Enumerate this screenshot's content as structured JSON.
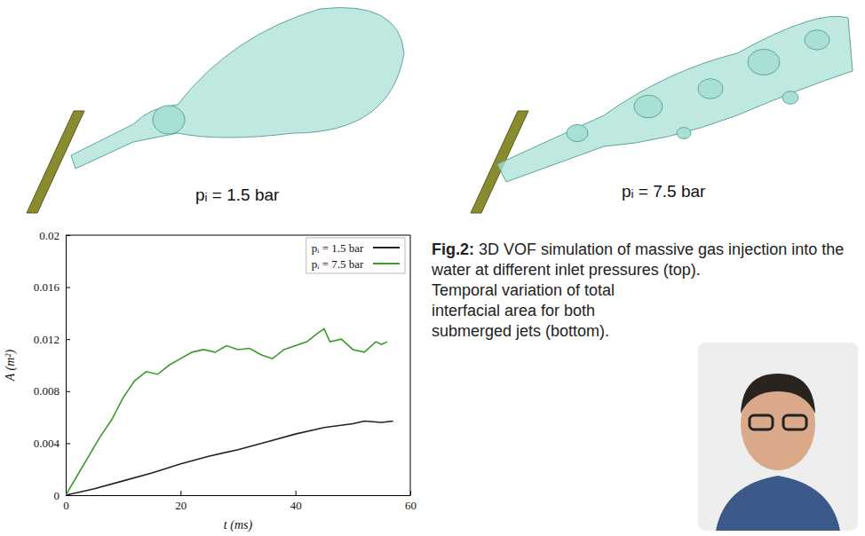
{
  "chart_data": {
    "type": "line",
    "xlabel": "t (ms)",
    "ylabel": "A (m²)",
    "xlim": [
      0,
      60
    ],
    "xticks": [
      0,
      20,
      40,
      60
    ],
    "ylim": [
      0,
      0.02
    ],
    "yticks": [
      0,
      0.004,
      0.008,
      0.012,
      0.016,
      0.02
    ],
    "legend": "upper right",
    "series": [
      {
        "name": "pᵢ = 1.5 bar",
        "color": "#222222",
        "x": [
          0,
          5,
          10,
          15,
          20,
          25,
          30,
          35,
          40,
          45,
          50,
          52,
          55,
          57
        ],
        "values": [
          0,
          0.0005,
          0.0011,
          0.0017,
          0.0024,
          0.003,
          0.0035,
          0.0041,
          0.0047,
          0.0052,
          0.0055,
          0.0057,
          0.0056,
          0.0057
        ]
      },
      {
        "name": "pᵢ = 7.5 bar",
        "color": "#3a9a2a",
        "x": [
          0,
          2,
          4,
          6,
          8,
          10,
          12,
          14,
          16,
          18,
          20,
          22,
          24,
          26,
          28,
          30,
          32,
          34,
          36,
          38,
          40,
          42,
          44,
          45,
          46,
          48,
          50,
          52,
          54,
          55,
          56
        ],
        "values": [
          0,
          0.0015,
          0.003,
          0.0045,
          0.0058,
          0.0075,
          0.0088,
          0.0095,
          0.0093,
          0.01,
          0.0105,
          0.011,
          0.0112,
          0.011,
          0.0115,
          0.0112,
          0.0113,
          0.0108,
          0.0105,
          0.0112,
          0.0115,
          0.0118,
          0.0125,
          0.0128,
          0.0118,
          0.012,
          0.0112,
          0.011,
          0.0118,
          0.0116,
          0.0118
        ]
      }
    ]
  },
  "figure": {
    "panels": [
      {
        "label": "pᵢ = 1.5 bar"
      },
      {
        "label": "pᵢ = 7.5 bar"
      }
    ],
    "caption_label": "Fig.2:",
    "caption_paragraphs": [
      "3D VOF simulation of massive gas injection into the water at different inlet pressures (top).",
      "Temporal variation of total interfacial area for both submerged jets (bottom)."
    ]
  }
}
